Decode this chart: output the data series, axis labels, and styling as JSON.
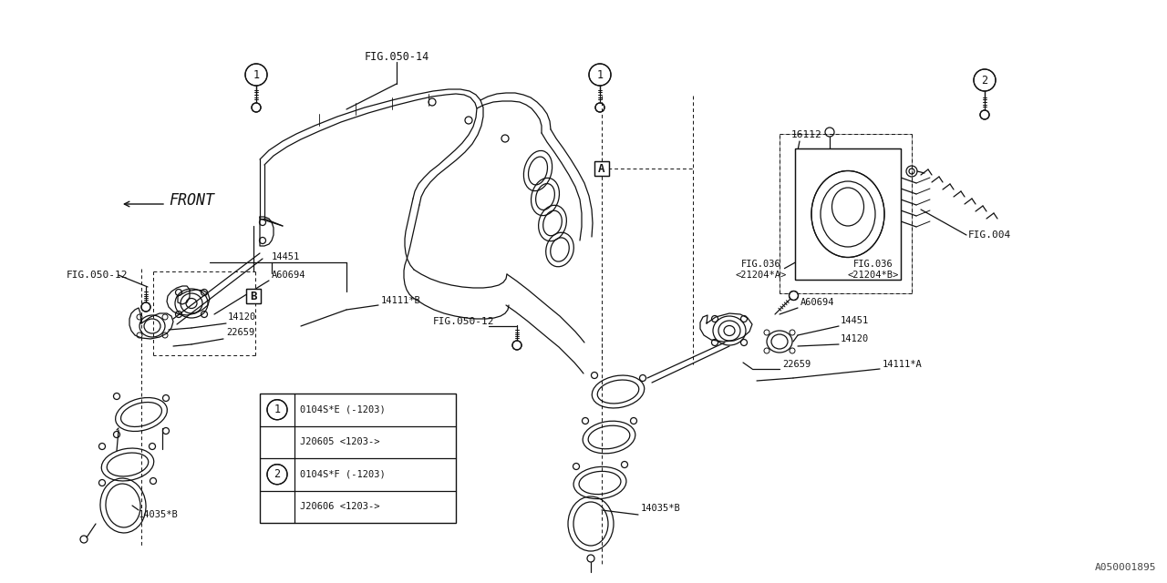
{
  "background_color": "#ffffff",
  "line_color": "#111111",
  "fig050_14": "FIG.050-14",
  "fig050_12": "FIG.050-12",
  "fig004": "FIG.004",
  "fig036a": "FIG.036",
  "fig036a_sub": "<21204*A>",
  "fig036b": "FIG.036",
  "fig036b_sub": "<21204*B>",
  "pn_16112": "16112",
  "pn_14451": "14451",
  "pn_A60694": "A60694",
  "pn_14120": "14120",
  "pn_22659": "22659",
  "pn_14111B": "14111*B",
  "pn_14111A": "14111*A",
  "pn_14035B": "14035*B",
  "front_label": "FRONT",
  "label_A": "A",
  "label_B": "B",
  "legend": [
    [
      "1",
      "0104S*E (-1203)"
    ],
    [
      "",
      "J20605 <1203->"
    ],
    [
      "2",
      "0104S*F (-1203)"
    ],
    [
      "",
      "J20606 <1203->"
    ]
  ],
  "watermark": "A050001895"
}
